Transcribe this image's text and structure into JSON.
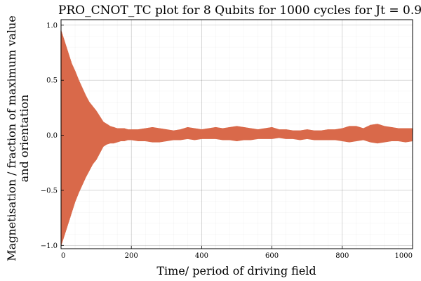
{
  "chart_data": {
    "type": "line",
    "title": "PRO_CNOT_TC plot for 8 Qubits for 1000 cycles for Jt = 0.9",
    "xlabel": "Time/ period of driving field",
    "ylabel_lines": [
      "Magnetisation / fraction of maximum value",
      "and orientation"
    ],
    "xlim": [
      0,
      1000
    ],
    "ylim": [
      -1.03,
      1.05
    ],
    "x_ticks": [
      0,
      200,
      400,
      600,
      800,
      1000
    ],
    "x_tick_labels": [
      "0",
      "200",
      "400",
      "600",
      "800",
      "1000"
    ],
    "y_ticks": [
      -1.0,
      -0.5,
      0.0,
      0.5,
      1.0
    ],
    "y_tick_labels": [
      "−1.0",
      "−0.5",
      "0.0",
      "0.5",
      "1.0"
    ],
    "grid": true,
    "minor_grid": true,
    "legend": "none",
    "series_color": "#d9694a",
    "envelope": {
      "x": [
        0,
        10,
        20,
        30,
        40,
        50,
        60,
        70,
        80,
        90,
        100,
        110,
        120,
        130,
        140,
        150,
        160,
        170,
        180,
        190,
        200,
        220,
        240,
        260,
        280,
        300,
        320,
        340,
        360,
        380,
        400,
        420,
        440,
        460,
        480,
        500,
        520,
        540,
        560,
        580,
        600,
        620,
        640,
        660,
        680,
        700,
        720,
        740,
        760,
        780,
        800,
        820,
        840,
        860,
        880,
        900,
        920,
        940,
        960,
        980,
        1000
      ],
      "upper": [
        0.95,
        0.85,
        0.75,
        0.65,
        0.58,
        0.5,
        0.43,
        0.36,
        0.3,
        0.26,
        0.22,
        0.17,
        0.12,
        0.1,
        0.08,
        0.07,
        0.06,
        0.06,
        0.06,
        0.05,
        0.05,
        0.05,
        0.06,
        0.07,
        0.06,
        0.05,
        0.04,
        0.05,
        0.07,
        0.06,
        0.05,
        0.06,
        0.07,
        0.06,
        0.07,
        0.08,
        0.07,
        0.06,
        0.05,
        0.06,
        0.07,
        0.05,
        0.05,
        0.04,
        0.04,
        0.05,
        0.04,
        0.04,
        0.05,
        0.05,
        0.06,
        0.08,
        0.08,
        0.06,
        0.09,
        0.1,
        0.08,
        0.07,
        0.06,
        0.06,
        0.06
      ],
      "lower": [
        -1.0,
        -0.9,
        -0.8,
        -0.7,
        -0.6,
        -0.52,
        -0.45,
        -0.38,
        -0.32,
        -0.26,
        -0.22,
        -0.16,
        -0.1,
        -0.08,
        -0.07,
        -0.07,
        -0.06,
        -0.05,
        -0.05,
        -0.04,
        -0.04,
        -0.05,
        -0.05,
        -0.06,
        -0.06,
        -0.05,
        -0.04,
        -0.04,
        -0.03,
        -0.04,
        -0.03,
        -0.03,
        -0.03,
        -0.04,
        -0.04,
        -0.05,
        -0.04,
        -0.04,
        -0.03,
        -0.03,
        -0.03,
        -0.02,
        -0.03,
        -0.03,
        -0.04,
        -0.03,
        -0.04,
        -0.04,
        -0.04,
        -0.04,
        -0.05,
        -0.06,
        -0.05,
        -0.04,
        -0.06,
        -0.07,
        -0.06,
        -0.05,
        -0.05,
        -0.06,
        -0.05
      ]
    },
    "samples": 2000
  }
}
